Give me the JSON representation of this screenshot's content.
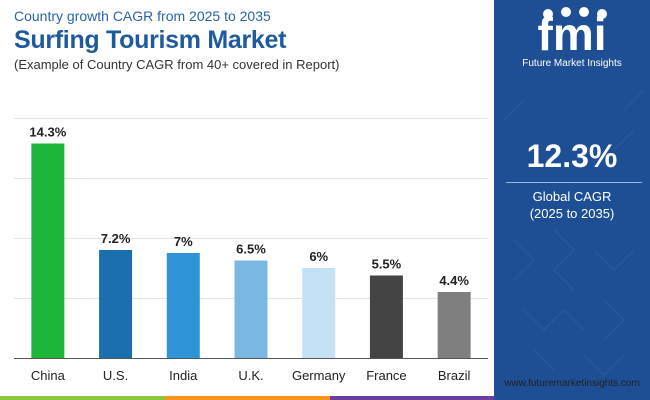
{
  "header": {
    "subtitle": "Country growth CAGR from 2025 to 2035",
    "title": "Surfing Tourism Market",
    "note": "(Example of Country CAGR from 40+ covered in Report)"
  },
  "side_panel": {
    "logo_text": "fmi",
    "logo_caption": "Future Market Insights",
    "global_value": "12.3%",
    "global_label": "Global CAGR",
    "global_period": "(2025 to 2035)",
    "background_color": "#1e4f95"
  },
  "footer": {
    "website": "www.futuremarketinsights.com",
    "strip_colors": [
      "#8dc63f",
      "#f7941d",
      "#6b3fa0",
      "#1e4f95"
    ]
  },
  "chart_data": {
    "type": "bar",
    "categories": [
      "China",
      "U.S.",
      "India",
      "U.K.",
      "Germany",
      "France",
      "Brazil"
    ],
    "values": [
      14.3,
      7.2,
      7,
      6.5,
      6,
      5.5,
      4.4
    ],
    "labels": [
      "14.3%",
      "7.2%",
      "7%",
      "6.5%",
      "6%",
      "5.5%",
      "4.4%"
    ],
    "colors": [
      "#1db53a",
      "#1c6fae",
      "#2f93d8",
      "#7ab8e4",
      "#c5e1f5",
      "#444444",
      "#7f7f7f"
    ],
    "ylim": [
      0,
      16
    ],
    "grid": true,
    "legend": "none"
  }
}
